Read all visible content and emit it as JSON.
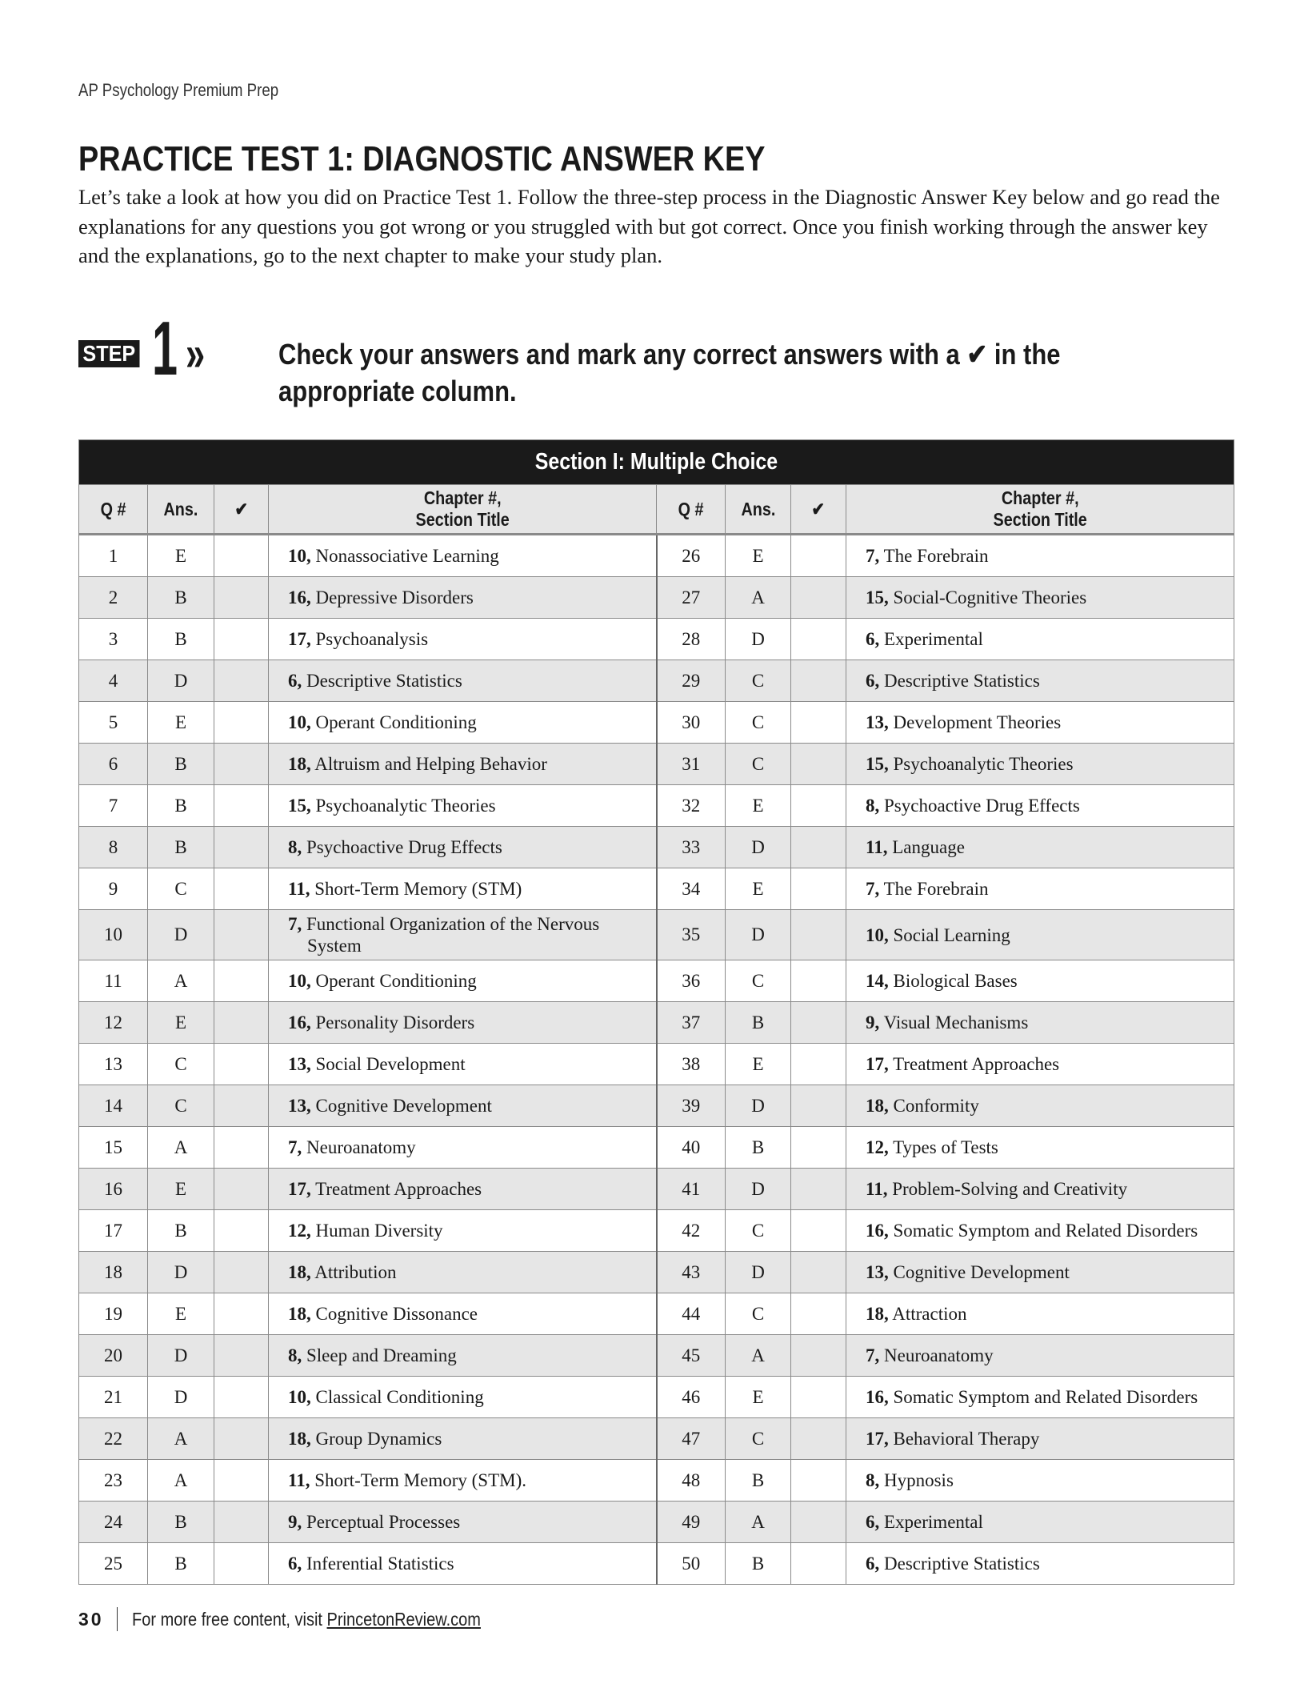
{
  "running_head": "AP Psychology Premium Prep",
  "title": "PRACTICE TEST 1: DIAGNOSTIC ANSWER KEY",
  "intro": "Let’s take a look at how you did on Practice Test 1. Follow the three-step process in the Diagnostic Answer Key below and go read the explanations for any questions you got wrong or you struggled with but got correct. Once you finish working through the answer key and the explanations, go to the next chapter to make your study plan.",
  "step": {
    "badge": "STEP",
    "number": "1",
    "arrows": "»",
    "text": "Check your answers and mark any correct answers with a ✔ in the appropriate column."
  },
  "table": {
    "section_title": "Section I: Multiple Choice",
    "headers": {
      "q": "Q #",
      "ans": "Ans.",
      "check": "✔",
      "chapter_line1": "Chapter #,",
      "chapter_line2": "Section Title"
    },
    "left": [
      {
        "q": "1",
        "ans": "E",
        "ch": "10,",
        "title": "Nonassociative Learning"
      },
      {
        "q": "2",
        "ans": "B",
        "ch": "16,",
        "title": "Depressive Disorders"
      },
      {
        "q": "3",
        "ans": "B",
        "ch": "17,",
        "title": "Psychoanalysis"
      },
      {
        "q": "4",
        "ans": "D",
        "ch": "6,",
        "title": "Descriptive Statistics"
      },
      {
        "q": "5",
        "ans": "E",
        "ch": "10,",
        "title": "Operant Conditioning"
      },
      {
        "q": "6",
        "ans": "B",
        "ch": "18,",
        "title": "Altruism and Helping Behavior"
      },
      {
        "q": "7",
        "ans": "B",
        "ch": "15,",
        "title": "Psychoanalytic Theories"
      },
      {
        "q": "8",
        "ans": "B",
        "ch": "8,",
        "title": "Psychoactive Drug Effects"
      },
      {
        "q": "9",
        "ans": "C",
        "ch": "11,",
        "title": "Short-Term Memory (STM)"
      },
      {
        "q": "10",
        "ans": "D",
        "ch": "7,",
        "title": "Functional Organization of the Nervous System"
      },
      {
        "q": "11",
        "ans": "A",
        "ch": "10,",
        "title": "Operant Conditioning"
      },
      {
        "q": "12",
        "ans": "E",
        "ch": "16,",
        "title": "Personality Disorders"
      },
      {
        "q": "13",
        "ans": "C",
        "ch": "13,",
        "title": "Social Development"
      },
      {
        "q": "14",
        "ans": "C",
        "ch": "13,",
        "title": "Cognitive Development"
      },
      {
        "q": "15",
        "ans": "A",
        "ch": "7,",
        "title": "Neuroanatomy"
      },
      {
        "q": "16",
        "ans": "E",
        "ch": "17,",
        "title": "Treatment Approaches"
      },
      {
        "q": "17",
        "ans": "B",
        "ch": "12,",
        "title": "Human Diversity"
      },
      {
        "q": "18",
        "ans": "D",
        "ch": "18,",
        "title": "Attribution"
      },
      {
        "q": "19",
        "ans": "E",
        "ch": "18,",
        "title": "Cognitive Dissonance"
      },
      {
        "q": "20",
        "ans": "D",
        "ch": "8,",
        "title": "Sleep and Dreaming"
      },
      {
        "q": "21",
        "ans": "D",
        "ch": "10,",
        "title": "Classical Conditioning"
      },
      {
        "q": "22",
        "ans": "A",
        "ch": "18,",
        "title": "Group Dynamics"
      },
      {
        "q": "23",
        "ans": "A",
        "ch": "11,",
        "title": "Short-Term Memory (STM)."
      },
      {
        "q": "24",
        "ans": "B",
        "ch": "9,",
        "title": "Perceptual Processes"
      },
      {
        "q": "25",
        "ans": "B",
        "ch": "6,",
        "title": "Inferential Statistics"
      }
    ],
    "right": [
      {
        "q": "26",
        "ans": "E",
        "ch": "7,",
        "title": "The Forebrain"
      },
      {
        "q": "27",
        "ans": "A",
        "ch": "15,",
        "title": "Social-Cognitive Theories"
      },
      {
        "q": "28",
        "ans": "D",
        "ch": "6,",
        "title": "Experimental"
      },
      {
        "q": "29",
        "ans": "C",
        "ch": "6,",
        "title": "Descriptive Statistics"
      },
      {
        "q": "30",
        "ans": "C",
        "ch": "13,",
        "title": "Development Theories"
      },
      {
        "q": "31",
        "ans": "C",
        "ch": "15,",
        "title": "Psychoanalytic Theories"
      },
      {
        "q": "32",
        "ans": "E",
        "ch": "8,",
        "title": "Psychoactive Drug Effects"
      },
      {
        "q": "33",
        "ans": "D",
        "ch": "11,",
        "title": "Language"
      },
      {
        "q": "34",
        "ans": "E",
        "ch": "7,",
        "title": "The Forebrain"
      },
      {
        "q": "35",
        "ans": "D",
        "ch": "10,",
        "title": "Social Learning"
      },
      {
        "q": "36",
        "ans": "C",
        "ch": "14,",
        "title": "Biological Bases"
      },
      {
        "q": "37",
        "ans": "B",
        "ch": "9,",
        "title": "Visual Mechanisms"
      },
      {
        "q": "38",
        "ans": "E",
        "ch": "17,",
        "title": "Treatment Approaches"
      },
      {
        "q": "39",
        "ans": "D",
        "ch": "18,",
        "title": "Conformity"
      },
      {
        "q": "40",
        "ans": "B",
        "ch": "12,",
        "title": "Types of Tests"
      },
      {
        "q": "41",
        "ans": "D",
        "ch": "11,",
        "title": "Problem-Solving and Creativity"
      },
      {
        "q": "42",
        "ans": "C",
        "ch": "16,",
        "title": "Somatic Symptom and Related Disorders"
      },
      {
        "q": "43",
        "ans": "D",
        "ch": "13,",
        "title": "Cognitive Development"
      },
      {
        "q": "44",
        "ans": "C",
        "ch": "18,",
        "title": "Attraction"
      },
      {
        "q": "45",
        "ans": "A",
        "ch": "7,",
        "title": "Neuroanatomy"
      },
      {
        "q": "46",
        "ans": "E",
        "ch": "16,",
        "title": "Somatic Symptom and Related Disorders"
      },
      {
        "q": "47",
        "ans": "C",
        "ch": "17,",
        "title": "Behavioral Therapy"
      },
      {
        "q": "48",
        "ans": "B",
        "ch": "8,",
        "title": "Hypnosis"
      },
      {
        "q": "49",
        "ans": "A",
        "ch": "6,",
        "title": "Experimental"
      },
      {
        "q": "50",
        "ans": "B",
        "ch": "6,",
        "title": "Descriptive Statistics"
      }
    ]
  },
  "footer": {
    "page": "30",
    "text": "For more free content, visit ",
    "link": "PrincetonReview.com"
  }
}
